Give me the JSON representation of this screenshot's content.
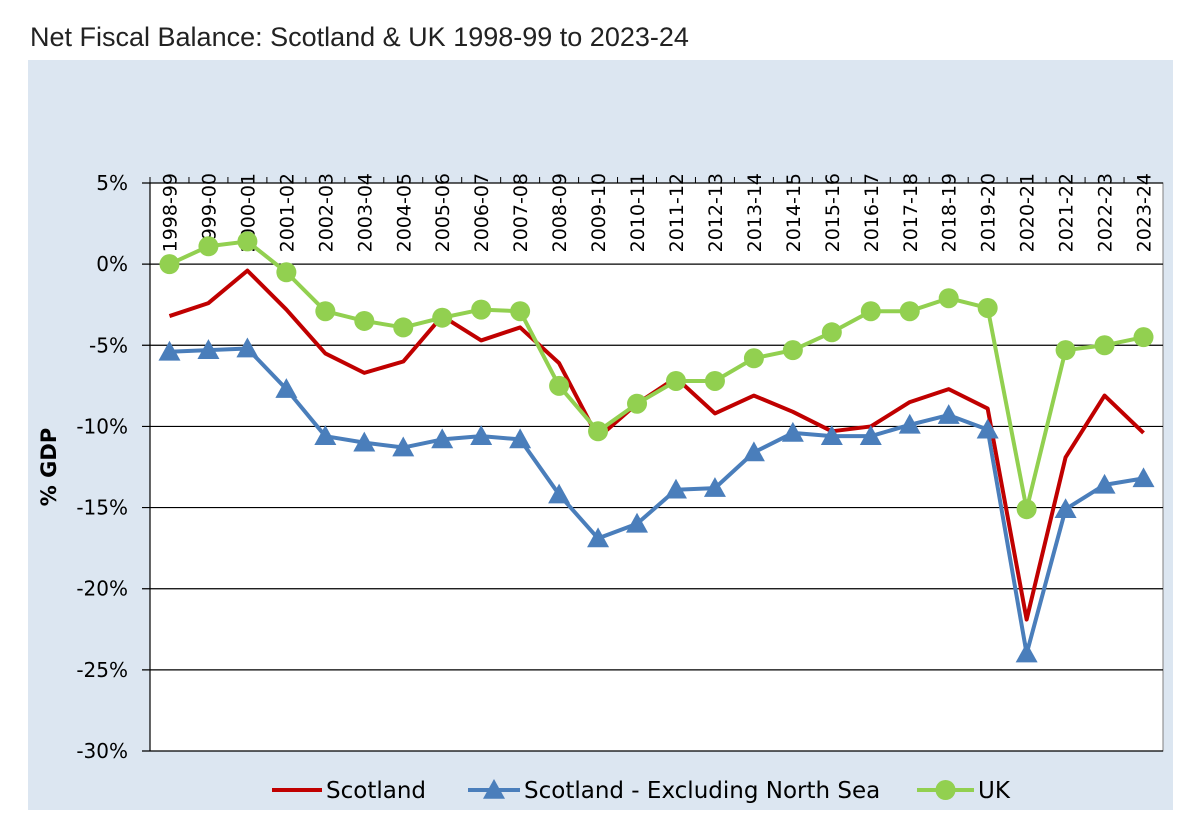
{
  "colors": {
    "panel_bg": "#dce6f1",
    "plot_bg": "#ffffff",
    "grid": "#000000",
    "scotland": "#c00000",
    "scotland_ex_ns": "#4a7ebb",
    "uk": "#92d050"
  },
  "chart_data": {
    "type": "line",
    "title": "Net Fiscal Balance: Scotland & UK 1998-99 to 2023-24",
    "xlabel": "",
    "ylabel": "% GDP",
    "ylim": [
      -30,
      5
    ],
    "yticks": [
      5,
      0,
      -5,
      -10,
      -15,
      -20,
      -25,
      -30
    ],
    "ytick_labels": [
      "5%",
      "0%",
      "-5%",
      "-10%",
      "-15%",
      "-20%",
      "-25%",
      "-30%"
    ],
    "grid": true,
    "legend_position": "bottom",
    "categories": [
      "1998-99",
      "1999-00",
      "2000-01",
      "2001-02",
      "2002-03",
      "2003-04",
      "2004-05",
      "2005-06",
      "2006-07",
      "2007-08",
      "2008-09",
      "2009-10",
      "2010-11",
      "2011-12",
      "2012-13",
      "2013-14",
      "2014-15",
      "2015-16",
      "2016-17",
      "2017-18",
      "2018-19",
      "2019-20",
      "2020-21",
      "2021-22",
      "2022-23",
      "2023-24"
    ],
    "series": [
      {
        "name": "Scotland",
        "marker": "none",
        "color": "#c00000",
        "values": [
          -3.2,
          -2.4,
          -0.4,
          -2.8,
          -5.5,
          -6.7,
          -6.0,
          -3.2,
          -4.7,
          -3.9,
          -6.1,
          -10.7,
          -8.6,
          -7.0,
          -9.2,
          -8.1,
          -9.1,
          -10.3,
          -10.0,
          -8.5,
          -7.7,
          -8.9,
          -21.9,
          -11.9,
          -8.1,
          -10.4
        ]
      },
      {
        "name": "Scotland - Excluding North Sea",
        "marker": "triangle",
        "color": "#4a7ebb",
        "values": [
          -5.4,
          -5.3,
          -5.2,
          -7.7,
          -10.6,
          -11.0,
          -11.3,
          -10.8,
          -10.6,
          -10.8,
          -14.2,
          -16.9,
          -16.0,
          -13.9,
          -13.8,
          -11.6,
          -10.4,
          -10.6,
          -10.6,
          -9.9,
          -9.3,
          -10.2,
          -24.0,
          -15.1,
          -13.6,
          -13.2
        ]
      },
      {
        "name": "UK",
        "marker": "circle",
        "color": "#92d050",
        "values": [
          0.0,
          1.1,
          1.4,
          -0.5,
          -2.9,
          -3.5,
          -3.9,
          -3.3,
          -2.8,
          -2.9,
          -7.5,
          -10.3,
          -8.6,
          -7.2,
          -7.2,
          -5.8,
          -5.3,
          -4.2,
          -2.9,
          -2.9,
          -2.1,
          -2.7,
          -15.1,
          -5.3,
          -5.0,
          -4.5
        ]
      }
    ]
  }
}
